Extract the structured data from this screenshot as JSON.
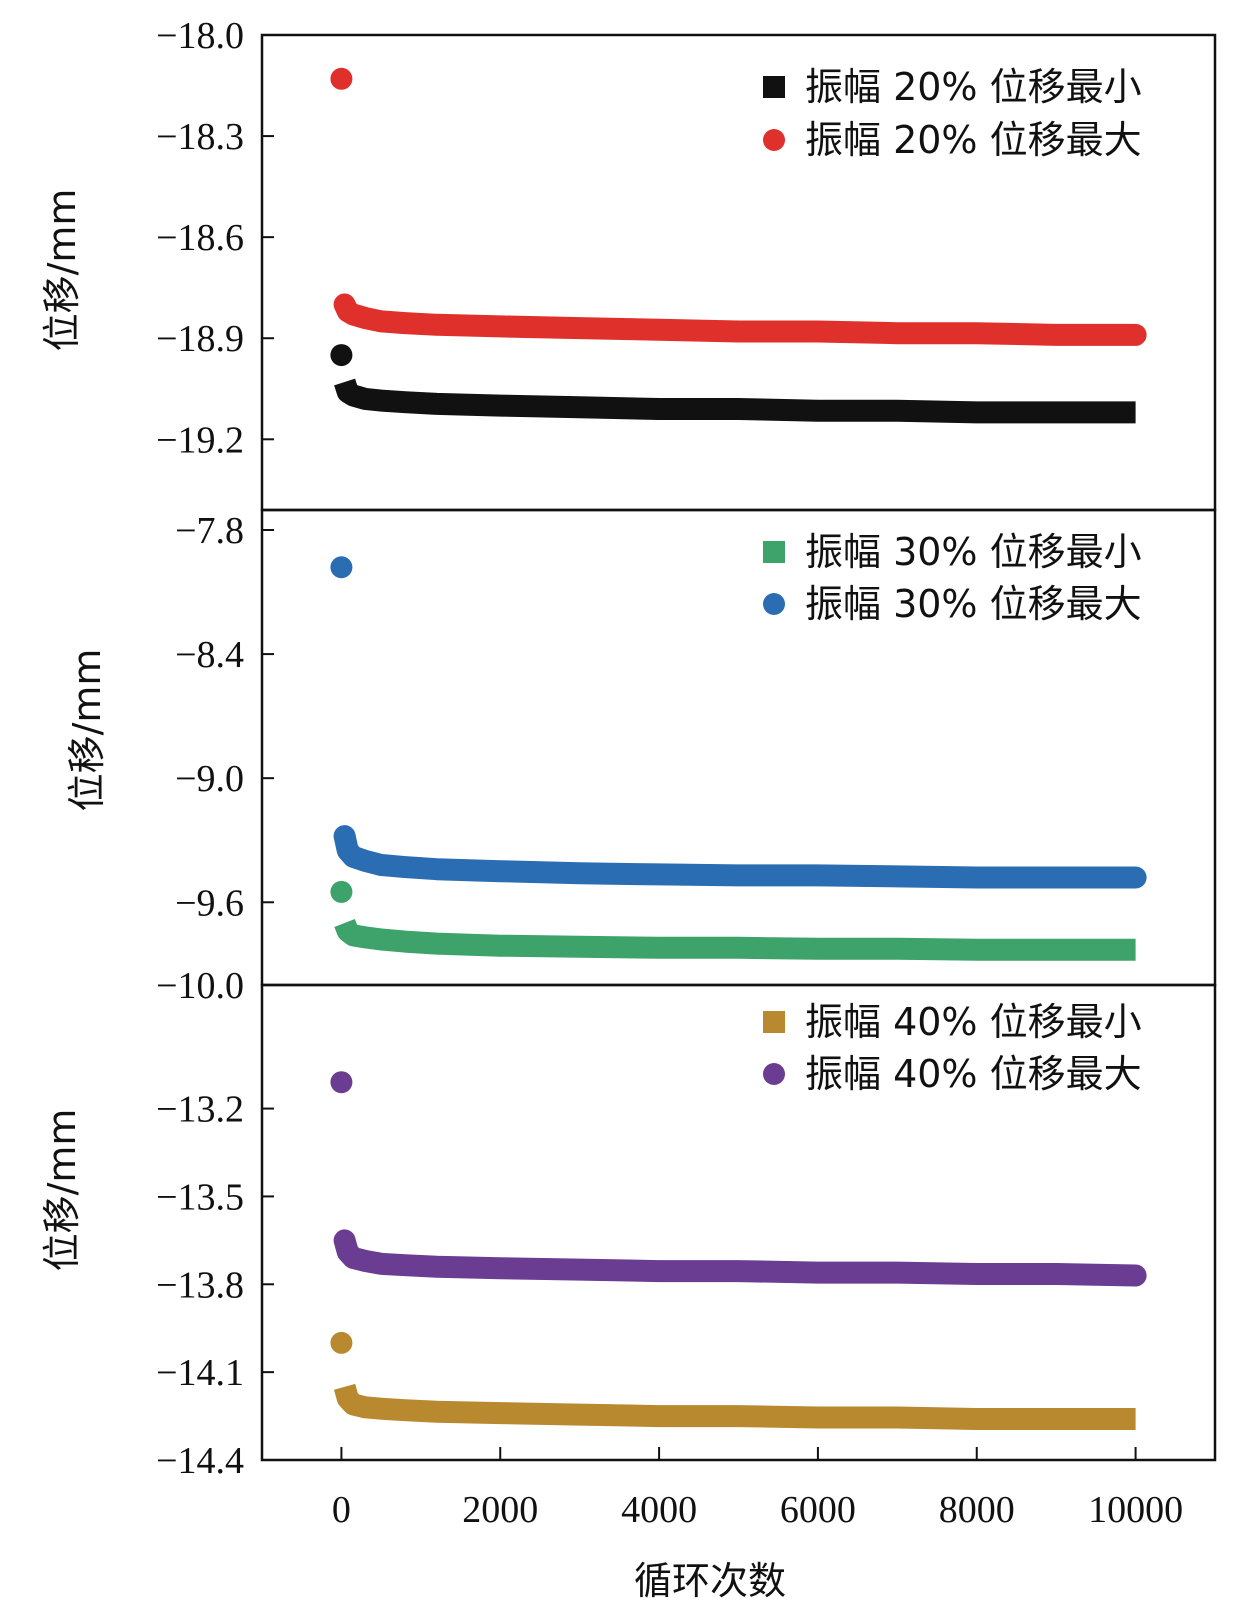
{
  "chart_data": {
    "type": "scatter",
    "xlabel": "循环次数",
    "xlim": [
      -1000,
      11000
    ],
    "xticks": [
      0,
      2000,
      4000,
      6000,
      8000,
      10000
    ],
    "xtick_labels": [
      "0",
      "2000",
      "4000",
      "6000",
      "8000",
      "10000"
    ],
    "panels": [
      {
        "ylabel": "位移/mm",
        "ylim": [
          -19.3,
          -18.0
        ],
        "yticks": [
          -18.0,
          -18.3,
          -18.6,
          -18.9,
          -19.2
        ],
        "ytick_labels": [
          "−18.0",
          "−18.3",
          "−18.6",
          "−18.9",
          "−19.2"
        ],
        "series": [
          {
            "name": "振幅 20% 位移最小",
            "marker": "square",
            "color": "#111111",
            "x": [
              0,
              40,
              80,
              150,
              300,
              500,
              800,
              1200,
              2000,
              3000,
              4000,
              5000,
              6000,
              7000,
              8000,
              9000,
              10000
            ],
            "y": [
              -18.95,
              -19.03,
              -19.06,
              -19.07,
              -19.08,
              -19.085,
              -19.09,
              -19.095,
              -19.1,
              -19.105,
              -19.11,
              -19.11,
              -19.115,
              -19.115,
              -19.12,
              -19.12,
              -19.12
            ]
          },
          {
            "name": "振幅 20% 位移最大",
            "marker": "circle",
            "color": "#e0302b",
            "x": [
              0,
              40,
              80,
              150,
              300,
              500,
              800,
              1200,
              2000,
              3000,
              4000,
              5000,
              6000,
              7000,
              8000,
              9000,
              10000
            ],
            "y": [
              -18.13,
              -18.8,
              -18.82,
              -18.83,
              -18.84,
              -18.85,
              -18.855,
              -18.86,
              -18.865,
              -18.87,
              -18.875,
              -18.88,
              -18.88,
              -18.885,
              -18.885,
              -18.89,
              -18.89
            ]
          }
        ]
      },
      {
        "ylabel": "位移/mm",
        "ylim": [
          -10.0,
          -7.8
        ],
        "yticks": [
          -7.8,
          -8.4,
          -9.0,
          -9.6,
          -10.0
        ],
        "ytick_labels": [
          "−7.8",
          "−8.4",
          "−9.0",
          "−9.6",
          "−10.0"
        ],
        "series": [
          {
            "name": "振幅 30% 位移最小",
            "marker": "square",
            "color": "#3da36a",
            "x": [
              0,
              40,
              80,
              150,
              300,
              500,
              800,
              1200,
              2000,
              3000,
              4000,
              5000,
              6000,
              7000,
              8000,
              9000,
              10000
            ],
            "y": [
              -9.55,
              -9.7,
              -9.74,
              -9.76,
              -9.77,
              -9.78,
              -9.79,
              -9.8,
              -9.81,
              -9.815,
              -9.82,
              -9.82,
              -9.825,
              -9.825,
              -9.83,
              -9.83,
              -9.83
            ]
          },
          {
            "name": "振幅 30% 位移最大",
            "marker": "circle",
            "color": "#2a6db3",
            "x": [
              0,
              40,
              80,
              150,
              300,
              500,
              800,
              1200,
              2000,
              3000,
              4000,
              5000,
              6000,
              7000,
              8000,
              9000,
              10000
            ],
            "y": [
              -7.98,
              -9.28,
              -9.35,
              -9.38,
              -9.4,
              -9.42,
              -9.43,
              -9.44,
              -9.45,
              -9.46,
              -9.465,
              -9.47,
              -9.47,
              -9.475,
              -9.48,
              -9.48,
              -9.48
            ]
          }
        ]
      },
      {
        "ylabel": "位移/mm",
        "ylim": [
          -14.4,
          -13.0
        ],
        "yticks": [
          -13.2,
          -13.5,
          -13.8,
          -14.1,
          -14.4
        ],
        "ytick_labels": [
          "−13.2",
          "−13.5",
          "−13.8",
          "−14.1",
          "−14.4"
        ],
        "series": [
          {
            "name": "振幅 40% 位移最小",
            "marker": "square",
            "color": "#b8892f",
            "x": [
              0,
              40,
              80,
              150,
              300,
              500,
              800,
              1200,
              2000,
              3000,
              4000,
              5000,
              6000,
              7000,
              8000,
              9000,
              10000
            ],
            "y": [
              -14.0,
              -14.15,
              -14.19,
              -14.21,
              -14.22,
              -14.225,
              -14.23,
              -14.235,
              -14.24,
              -14.245,
              -14.25,
              -14.25,
              -14.255,
              -14.255,
              -14.26,
              -14.26,
              -14.26
            ]
          },
          {
            "name": "振幅 40% 位移最大",
            "marker": "circle",
            "color": "#6a3d93",
            "x": [
              0,
              40,
              80,
              150,
              300,
              500,
              800,
              1200,
              2000,
              3000,
              4000,
              5000,
              6000,
              7000,
              8000,
              9000,
              10000
            ],
            "y": [
              -13.11,
              -13.65,
              -13.69,
              -13.71,
              -13.72,
              -13.73,
              -13.735,
              -13.74,
              -13.745,
              -13.75,
              -13.755,
              -13.755,
              -13.76,
              -13.76,
              -13.765,
              -13.765,
              -13.77
            ]
          }
        ]
      }
    ]
  }
}
